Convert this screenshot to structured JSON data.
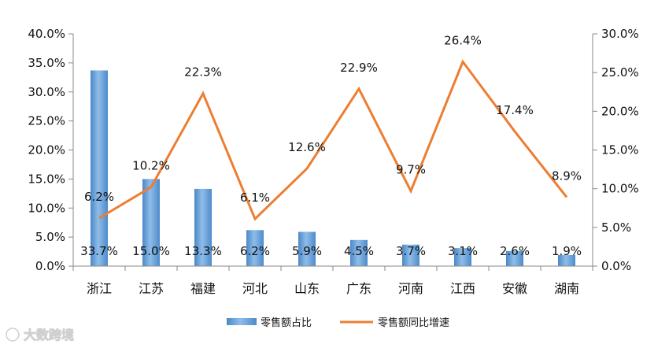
{
  "chart_data": {
    "type": "bar+line",
    "categories": [
      "浙江",
      "江苏",
      "福建",
      "河北",
      "山东",
      "广东",
      "河南",
      "江西",
      "安徽",
      "湖南"
    ],
    "series": [
      {
        "name": "零售额占比",
        "type": "bar",
        "axis": "left",
        "values": [
          33.7,
          15.0,
          13.3,
          6.2,
          5.9,
          4.5,
          3.7,
          3.1,
          2.6,
          1.9
        ],
        "labels": [
          "33.7%",
          "15.0%",
          "13.3%",
          "6.2%",
          "5.9%",
          "4.5%",
          "3.7%",
          "3.1%",
          "2.6%",
          "1.9%"
        ],
        "color": "#5b9bd5"
      },
      {
        "name": "零售额同比增速",
        "type": "line",
        "axis": "right",
        "values": [
          6.2,
          10.2,
          22.3,
          6.1,
          12.6,
          22.9,
          9.7,
          26.4,
          17.4,
          8.9
        ],
        "labels": [
          "6.2%",
          "10.2%",
          "22.3%",
          "6.1%",
          "12.6%",
          "22.9%",
          "9.7%",
          "26.4%",
          "17.4%",
          "8.9%"
        ],
        "color": "#ed7d31"
      }
    ],
    "y_left": {
      "range": [
        0,
        40
      ],
      "ticks": [
        0,
        5,
        10,
        15,
        20,
        25,
        30,
        35,
        40
      ],
      "tick_labels": [
        "0.0%",
        "5.0%",
        "10.0%",
        "15.0%",
        "20.0%",
        "25.0%",
        "30.0%",
        "35.0%",
        "40.0%"
      ]
    },
    "y_right": {
      "range": [
        0,
        30
      ],
      "ticks": [
        0,
        5,
        10,
        15,
        20,
        25,
        30
      ],
      "tick_labels": [
        "0.0%",
        "5.0%",
        "10.0%",
        "15.0%",
        "20.0%",
        "25.0%",
        "30.0%"
      ]
    },
    "grid": false,
    "legend_position": "bottom",
    "watermark": "大数跨境"
  }
}
